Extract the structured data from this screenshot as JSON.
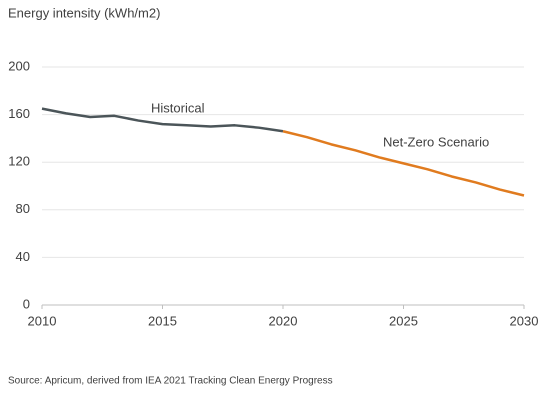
{
  "chart_data": {
    "type": "line",
    "title": "Energy intensity (kWh/m2)",
    "source": "Source: Apricum, derived from IEA 2021 Tracking Clean Energy Progress",
    "annotations": [
      "Historical",
      "Net-Zero Scenario"
    ],
    "x": [
      2010,
      2011,
      2012,
      2013,
      2014,
      2015,
      2016,
      2017,
      2018,
      2019,
      2020,
      2021,
      2022,
      2023,
      2024,
      2025,
      2026,
      2027,
      2028,
      2029,
      2030
    ],
    "series": [
      {
        "name": "Historical",
        "color": "#4b5559",
        "values": [
          165,
          161,
          158,
          159,
          155,
          152,
          151,
          150,
          151,
          149,
          146,
          null,
          null,
          null,
          null,
          null,
          null,
          null,
          null,
          null,
          null
        ]
      },
      {
        "name": "Net-Zero Scenario",
        "color": "#e07b1f",
        "values": [
          null,
          null,
          null,
          null,
          null,
          null,
          null,
          null,
          null,
          null,
          146,
          141,
          135,
          130,
          124,
          119,
          114,
          108,
          103,
          97,
          92
        ]
      }
    ],
    "xlim": [
      2010,
      2030
    ],
    "xticks": [
      2010,
      2015,
      2020,
      2025,
      2030
    ],
    "ylim": [
      0,
      200
    ],
    "yticks": [
      0,
      40,
      80,
      120,
      160,
      200
    ],
    "grid": true
  }
}
